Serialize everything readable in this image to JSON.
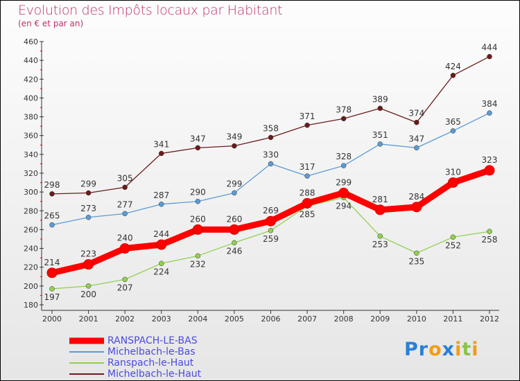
{
  "title": "Evolution des Impôts locaux par Habitant",
  "subtitle": "(en € et par an)",
  "logo": "Proxiti",
  "chart_data": {
    "type": "line",
    "title": "Evolution des Impôts locaux par Habitant",
    "subtitle": "(en € et par an)",
    "xlabel": "",
    "ylabel": "",
    "x": [
      "2000",
      "2001",
      "2002",
      "2003",
      "2004",
      "2005",
      "2006",
      "2007",
      "2008",
      "2009",
      "2010",
      "2011",
      "2012"
    ],
    "ylim": [
      180,
      460
    ],
    "yticks": [
      180,
      200,
      220,
      240,
      260,
      280,
      300,
      320,
      340,
      360,
      380,
      400,
      420,
      440,
      460
    ],
    "legend_position": "bottom-left",
    "series": [
      {
        "name": "RANSPACH-LE-BAS",
        "color": "#ff0000",
        "values": [
          214,
          223,
          240,
          244,
          260,
          260,
          269,
          288,
          299,
          281,
          284,
          310,
          323
        ]
      },
      {
        "name": "Michelbach-le-Bas",
        "color": "#5b9bd5",
        "values": [
          265,
          273,
          277,
          287,
          290,
          299,
          330,
          317,
          328,
          351,
          347,
          365,
          384
        ]
      },
      {
        "name": "Ranspach-le-Haut",
        "color": "#92d050",
        "values": [
          197,
          200,
          207,
          224,
          232,
          246,
          259,
          285,
          294,
          253,
          235,
          252,
          258
        ]
      },
      {
        "name": "Michelbach-le-Haut",
        "color": "#6b1a1a",
        "values": [
          298,
          299,
          305,
          341,
          347,
          349,
          358,
          371,
          378,
          389,
          374,
          424,
          444
        ]
      }
    ]
  }
}
